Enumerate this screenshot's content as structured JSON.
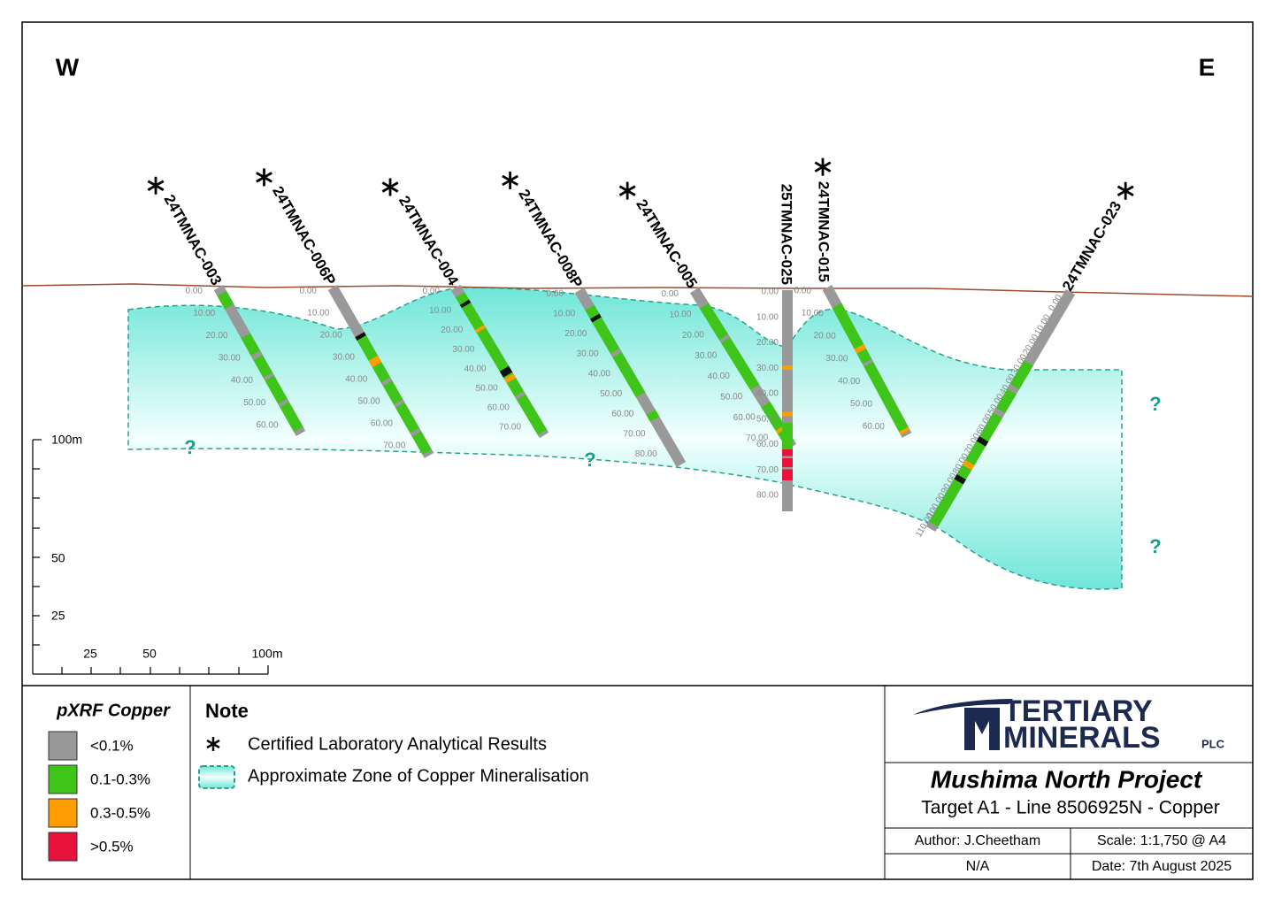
{
  "directions": {
    "west": "W",
    "east": "E"
  },
  "holes": [
    {
      "name": "24TMNAC-003",
      "certified": true,
      "depth_labels": [
        "0.00",
        "10.00",
        "20.00",
        "30.00",
        "40.00",
        "50.00",
        "60.00"
      ]
    },
    {
      "name": "24TMNAC-006P",
      "certified": true,
      "depth_labels": [
        "0.00",
        "10.00",
        "20.00",
        "30.00",
        "40.00",
        "50.00",
        "60.00",
        "70.00"
      ]
    },
    {
      "name": "24TMNAC-004",
      "certified": true,
      "depth_labels": [
        "0.00",
        "10.00",
        "20.00",
        "30.00",
        "40.00",
        "50.00",
        "60.00",
        "70.00"
      ]
    },
    {
      "name": "24TMNAC-008P",
      "certified": true,
      "depth_labels": [
        "0.00",
        "10.00",
        "20.00",
        "30.00",
        "40.00",
        "50.00",
        "60.00",
        "70.00",
        "80.00"
      ]
    },
    {
      "name": "24TMNAC-005",
      "certified": true,
      "depth_labels": [
        "0.00",
        "10.00",
        "20.00",
        "30.00",
        "40.00",
        "50.00",
        "60.00",
        "70.00"
      ]
    },
    {
      "name": "25TMNAC-025",
      "certified": false,
      "depth_labels": [
        "0.00",
        "10.00",
        "20.00",
        "30.00",
        "40.00",
        "50.00",
        "60.00",
        "70.00",
        "80.00"
      ]
    },
    {
      "name": "24TMNAC-015",
      "certified": true,
      "depth_labels": [
        "0.00",
        "10.00",
        "20.00",
        "30.00",
        "40.00",
        "50.00",
        "60.00"
      ]
    },
    {
      "name": "24TMNAC-023",
      "certified": true,
      "depth_labels": [
        "0.00",
        "10.00",
        "20.00",
        "30.00",
        "40.00",
        "50.00",
        "60.00",
        "70.00",
        "80.00",
        "90.00",
        "100.00",
        "110.00"
      ]
    }
  ],
  "unknown_marker": "?",
  "scale_bar": {
    "vertical": [
      "100m",
      "50",
      "25"
    ],
    "horizontal": [
      "25",
      "50",
      "100m"
    ]
  },
  "legend": {
    "title": "pXRF Copper",
    "items": [
      {
        "label": "<0.1%",
        "color": "#999999"
      },
      {
        "label": "0.1-0.3%",
        "color": "#3fc51a"
      },
      {
        "label": "0.3-0.5%",
        "color": "#ff9d00"
      },
      {
        "label": ">0.5%",
        "color": "#e8123c"
      }
    ]
  },
  "note": {
    "title": "Note",
    "items": [
      "Certified Laboratory Analytical Results",
      "Approximate Zone of Copper Mineralisation"
    ]
  },
  "logo": {
    "line1": "TERTIARY",
    "line2": "MINERALS",
    "suffix": "PLC"
  },
  "title_block": {
    "project": "Mushima North Project",
    "subtitle": "Target A1 - Line 8506925N - Copper",
    "author": "Author: J.Cheetham",
    "scale": "Scale: 1:1,750 @ A4",
    "reference": "N/A",
    "date": "Date: 7th August 2025"
  }
}
